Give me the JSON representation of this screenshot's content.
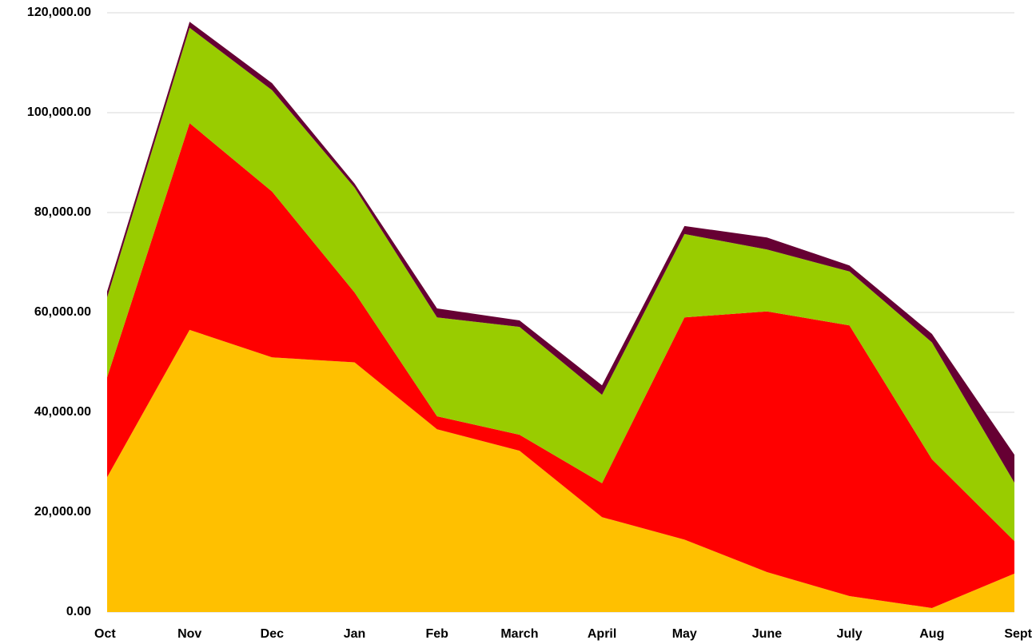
{
  "chart_data": {
    "type": "stacked_area",
    "categories": [
      "Oct",
      "Nov",
      "Dec",
      "Jan",
      "Feb",
      "March",
      "April",
      "May",
      "June",
      "July",
      "Aug",
      "Sept"
    ],
    "series": [
      {
        "color": "#ffc000",
        "values": [
          27000,
          56500,
          51000,
          50000,
          36600,
          32300,
          19000,
          14500,
          8000,
          3200,
          800,
          7700
        ]
      },
      {
        "color": "#ff0000",
        "values": [
          20000,
          41400,
          33200,
          14000,
          2600,
          3200,
          6800,
          44500,
          52200,
          54200,
          29800,
          6500
        ]
      },
      {
        "color": "#99cc00",
        "values": [
          16000,
          19100,
          20300,
          21000,
          19800,
          21600,
          17700,
          16700,
          12400,
          10800,
          23400,
          11700
        ]
      },
      {
        "color": "#660033",
        "values": [
          1200,
          1200,
          1400,
          800,
          1800,
          1300,
          1900,
          1600,
          2400,
          1200,
          1700,
          5600
        ]
      }
    ],
    "ylim": [
      0,
      120000
    ],
    "yticks": [
      {
        "value": 0,
        "label": "0.00"
      },
      {
        "value": 20000,
        "label": "20,000.00"
      },
      {
        "value": 40000,
        "label": "40,000.00"
      },
      {
        "value": 60000,
        "label": "60,000.00"
      },
      {
        "value": 80000,
        "label": "80,000.00"
      },
      {
        "value": 100000,
        "label": "100,000.00"
      },
      {
        "value": 120000,
        "label": "120,000.00"
      }
    ],
    "grid": true
  }
}
